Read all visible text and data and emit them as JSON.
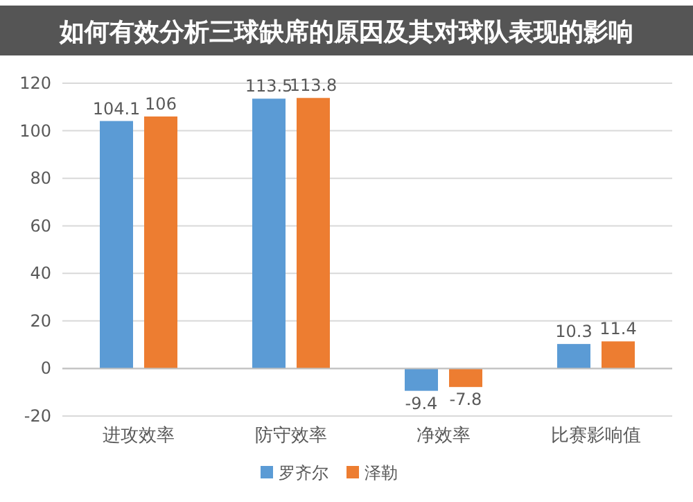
{
  "chart_data": {
    "type": "bar",
    "title": "如何有效分析三球缺席的原因及其对球队表现的影响",
    "categories": [
      "进攻效率",
      "防守效率",
      "净效率",
      "比赛影响值"
    ],
    "series": [
      {
        "name": "罗齐尔",
        "color": "#5b9bd5",
        "values": [
          104.1,
          113.5,
          -9.4,
          10.3
        ]
      },
      {
        "name": "泽勒",
        "color": "#ed7d31",
        "values": [
          106,
          113.8,
          -7.8,
          11.4
        ]
      }
    ],
    "ylim": [
      -20,
      120
    ],
    "yticks": [
      -20,
      0,
      20,
      40,
      60,
      80,
      100,
      120
    ],
    "grid": "y",
    "legend": "bottom",
    "data_labels": true
  }
}
